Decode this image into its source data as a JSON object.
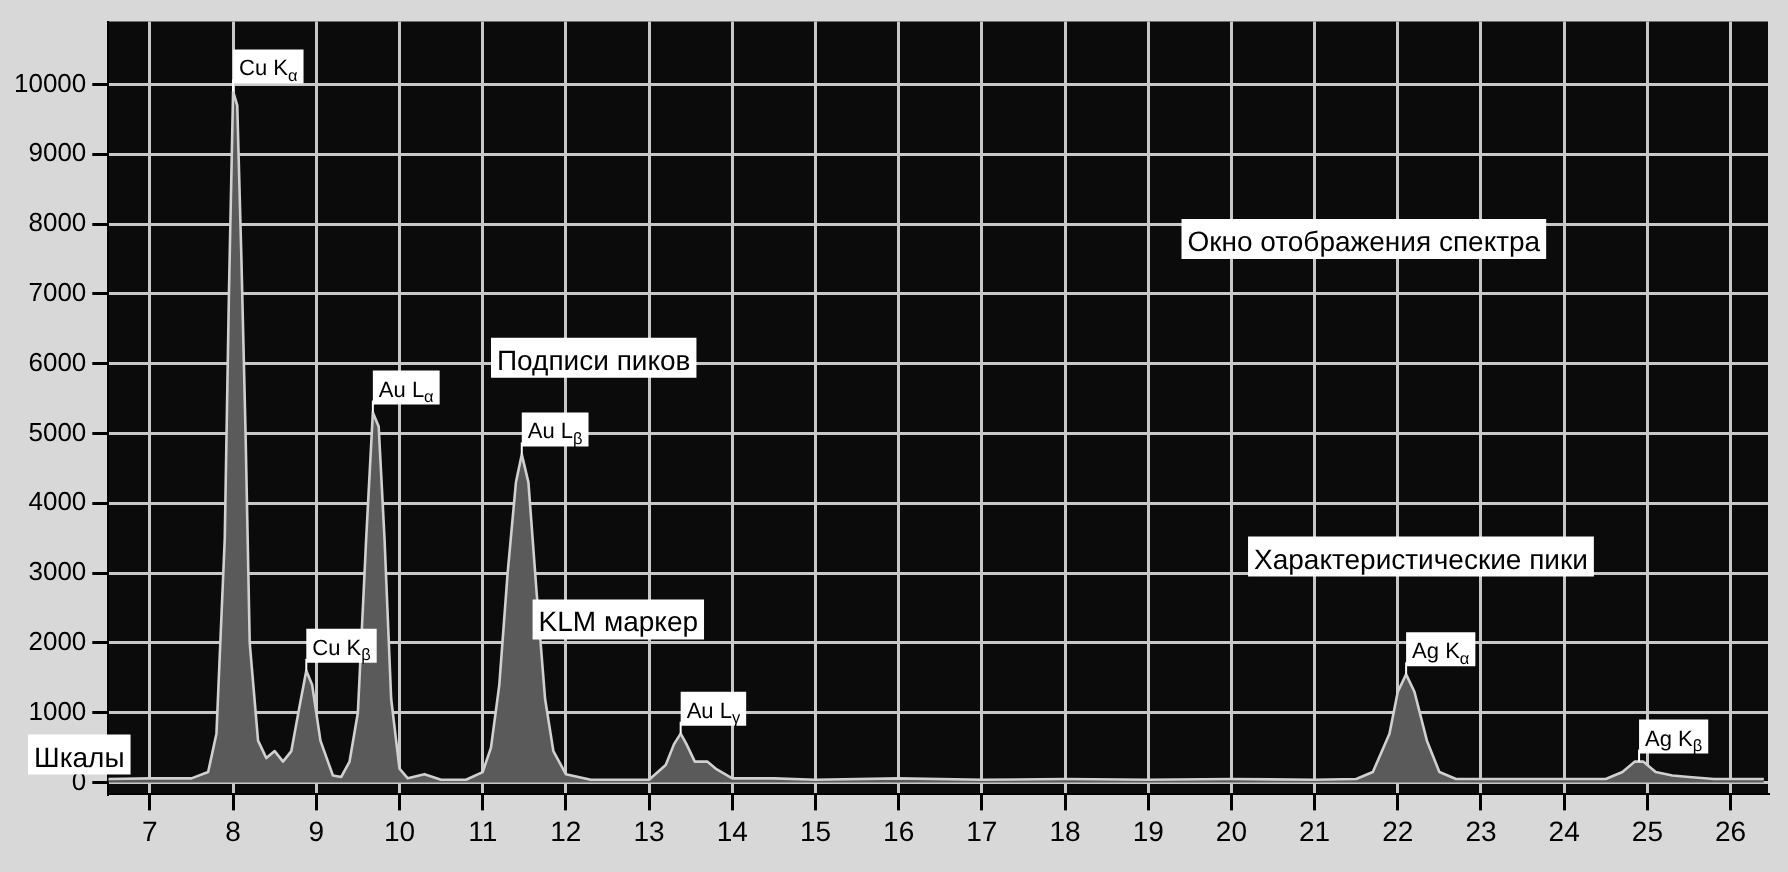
{
  "chart_data": {
    "type": "area",
    "x": [
      6.5,
      7.0,
      7.5,
      7.7,
      7.8,
      7.9,
      7.95,
      8.0,
      8.05,
      8.1,
      8.15,
      8.2,
      8.3,
      8.4,
      8.5,
      8.6,
      8.7,
      8.8,
      8.88,
      8.95,
      9.05,
      9.2,
      9.3,
      9.4,
      9.5,
      9.6,
      9.68,
      9.75,
      9.82,
      9.9,
      10.0,
      10.1,
      10.3,
      10.5,
      10.8,
      11.0,
      11.1,
      11.2,
      11.3,
      11.4,
      11.47,
      11.55,
      11.65,
      11.75,
      11.85,
      12.0,
      12.3,
      13.0,
      13.2,
      13.3,
      13.38,
      13.45,
      13.55,
      13.7,
      13.8,
      14.0,
      14.5,
      15.0,
      16.0,
      17.0,
      18.0,
      19.0,
      20.0,
      21.0,
      21.5,
      21.7,
      21.9,
      22.0,
      22.1,
      22.2,
      22.35,
      22.5,
      22.7,
      23.5,
      24.0,
      24.5,
      24.7,
      24.85,
      24.95,
      25.1,
      25.3,
      25.5,
      25.8,
      26.4
    ],
    "series": [
      {
        "color": "#5a5a5a",
        "values": [
          50,
          60,
          60,
          150,
          700,
          3500,
          7000,
          9900,
          9700,
          7500,
          5000,
          2000,
          600,
          350,
          450,
          300,
          450,
          1100,
          1600,
          1400,
          600,
          100,
          80,
          300,
          1000,
          3500,
          5300,
          5100,
          3500,
          1200,
          200,
          60,
          120,
          40,
          40,
          150,
          500,
          1400,
          3000,
          4300,
          4700,
          4300,
          2700,
          1200,
          450,
          120,
          40,
          40,
          250,
          550,
          700,
          550,
          300,
          300,
          200,
          60,
          60,
          40,
          60,
          40,
          50,
          40,
          50,
          40,
          50,
          150,
          700,
          1300,
          1550,
          1300,
          600,
          150,
          50,
          50,
          50,
          50,
          150,
          300,
          300,
          150,
          100,
          80,
          50,
          50
        ]
      }
    ],
    "xlim": [
      6.5,
      26.45
    ],
    "ylim": [
      -170,
      10900
    ],
    "xticks": [
      7,
      8,
      9,
      10,
      11,
      12,
      13,
      14,
      15,
      16,
      17,
      18,
      19,
      20,
      21,
      22,
      23,
      24,
      25,
      26
    ],
    "yticks": [
      0,
      1000,
      2000,
      3000,
      4000,
      5000,
      6000,
      7000,
      8000,
      9000,
      10000
    ],
    "grid": true,
    "legend": false,
    "marker": "none",
    "line_style": "solid",
    "annotations": [
      {
        "text": "Cu K$_{α}$",
        "x": 8.0,
        "y": 9900
      },
      {
        "text": "Cu K$_{β}$",
        "x": 8.88,
        "y": 1600
      },
      {
        "text": "Au L$_{α}$",
        "x": 9.68,
        "y": 5300
      },
      {
        "text": "Au L$_{β}$",
        "x": 11.47,
        "y": 4700
      },
      {
        "text": "Au L$_{γ}$",
        "x": 13.38,
        "y": 700
      },
      {
        "text": "Ag K$_{α}$",
        "x": 22.1,
        "y": 1550
      },
      {
        "text": "Ag K$_{β}$",
        "x": 24.9,
        "y": 300
      },
      "Окно отображения спектра",
      "Подписи пиков",
      "KLM маркер",
      "Характеристические пики",
      "Шкалы"
    ]
  }
}
